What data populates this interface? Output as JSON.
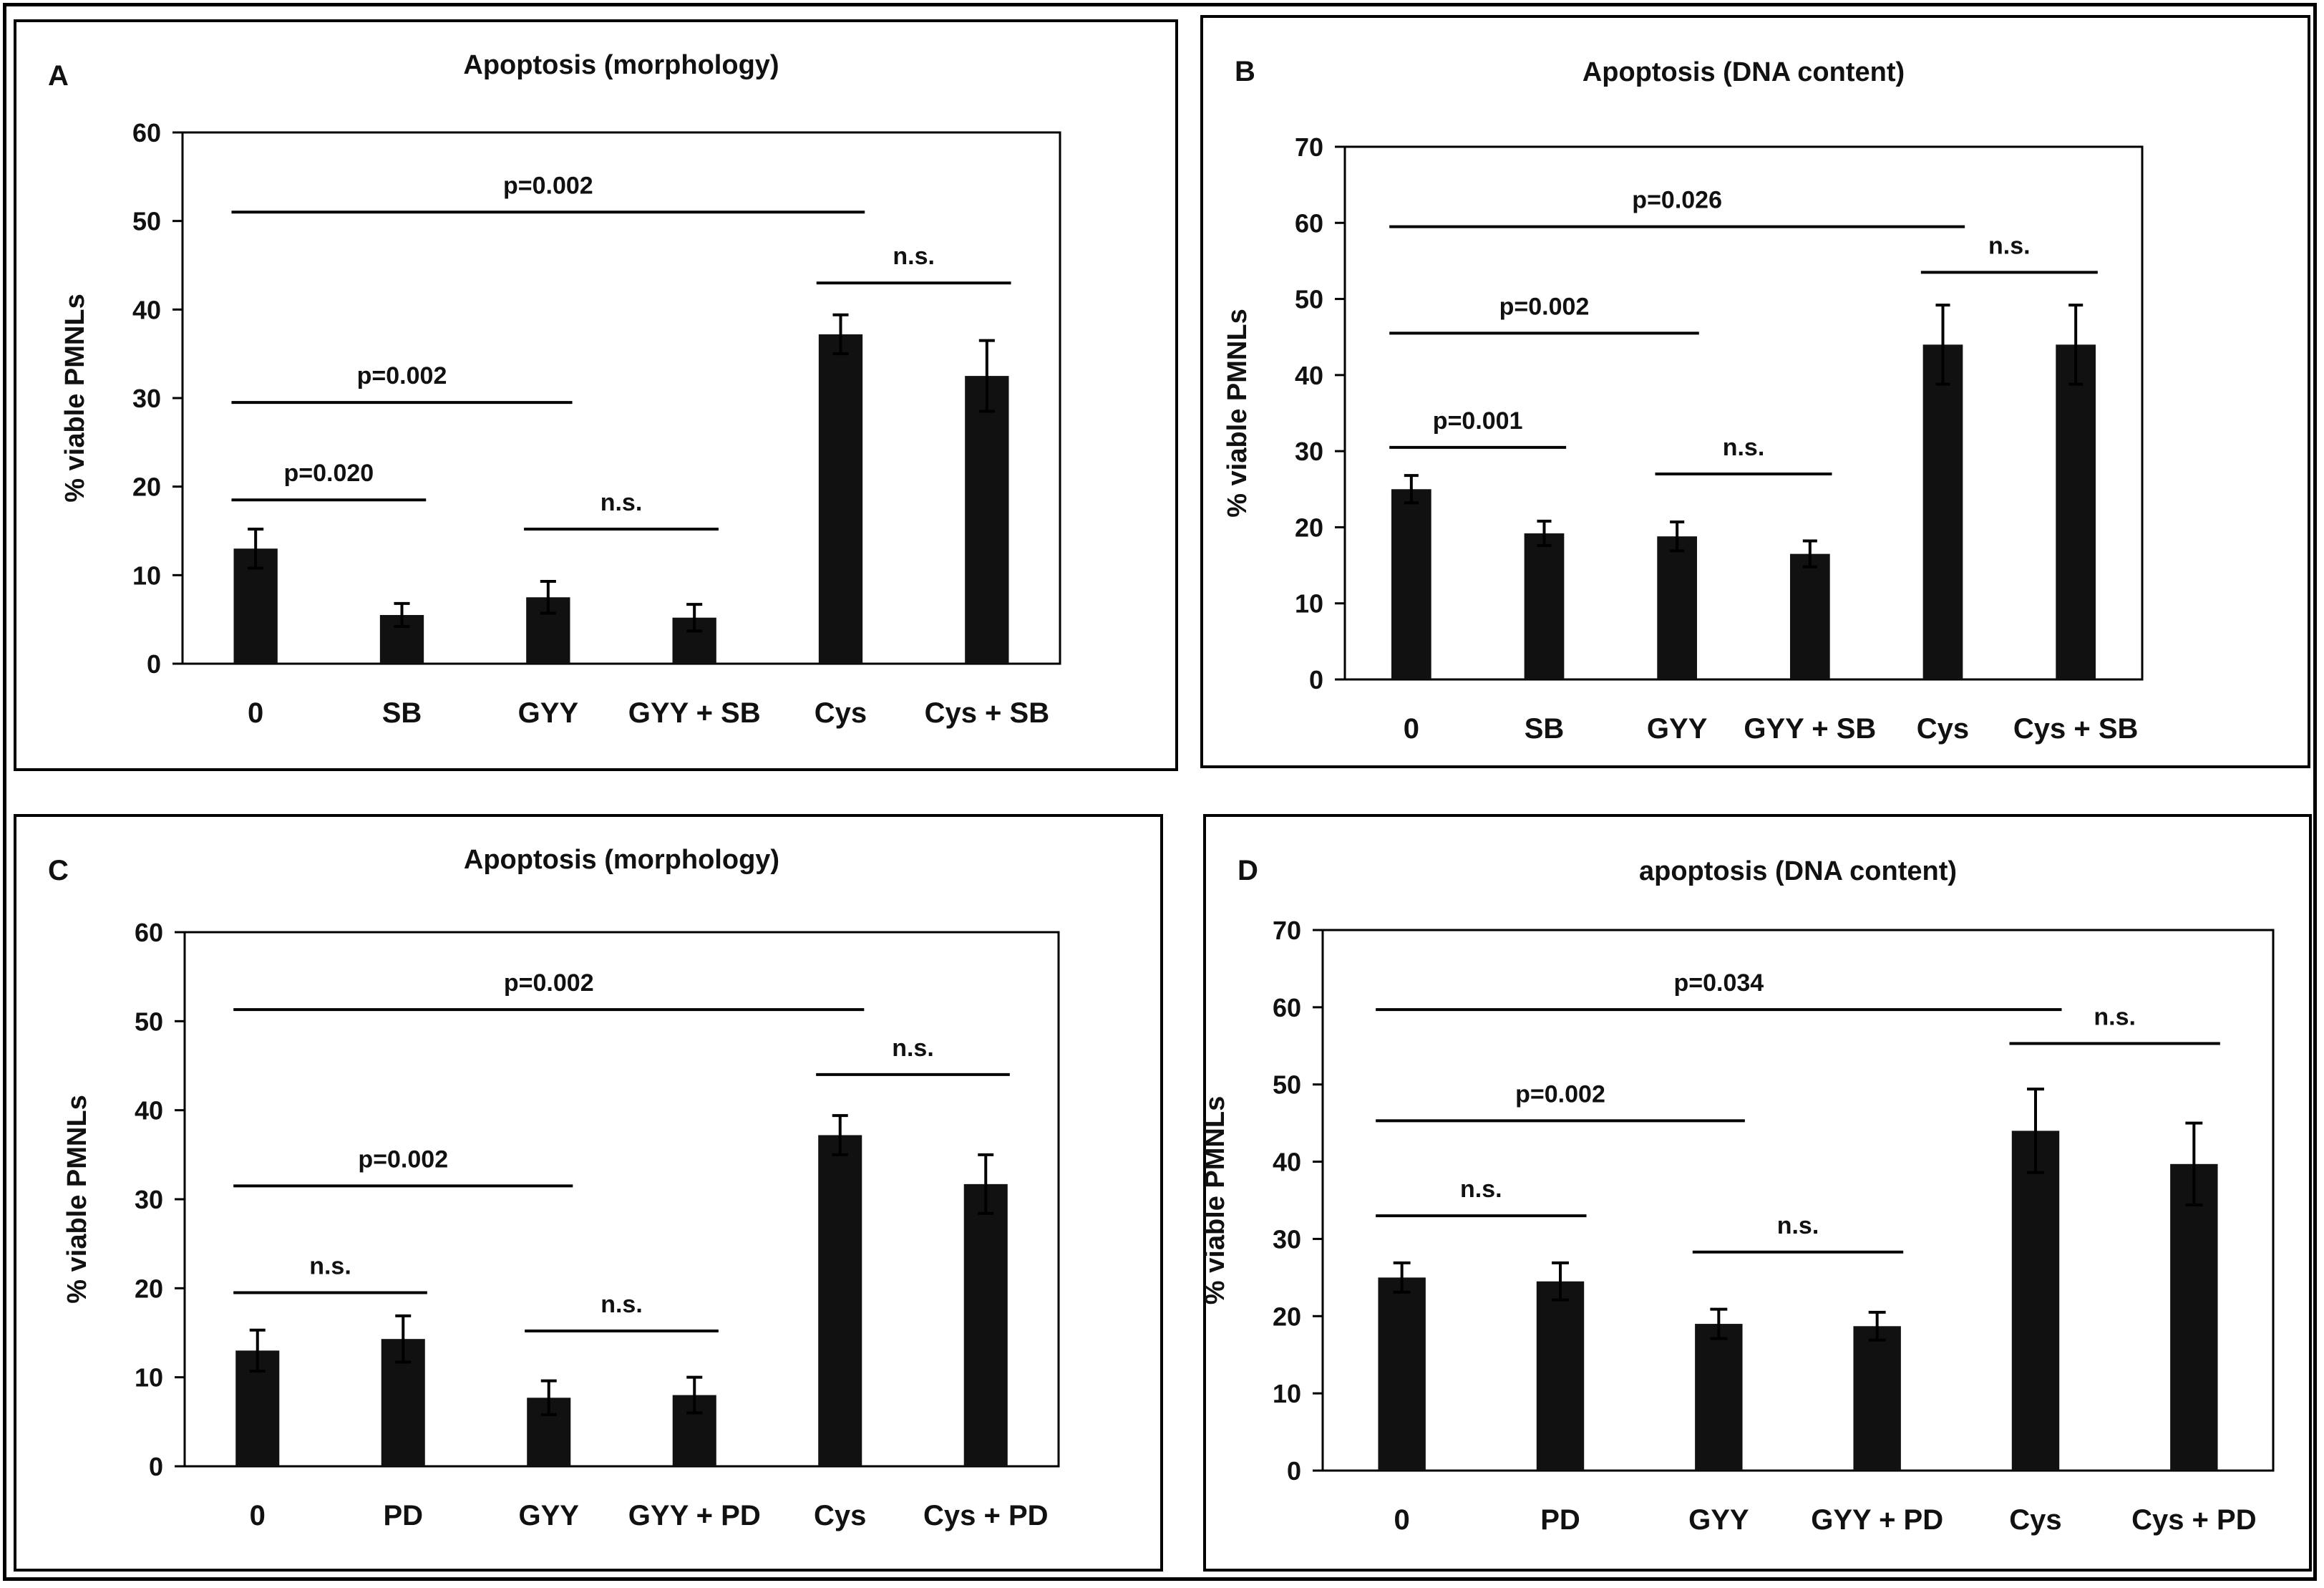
{
  "chart_data": [
    {
      "type": "bar",
      "panel_label": "A",
      "title": "Apoptosis (morphology)",
      "ylabel": "% viable PMNLs",
      "xlabel": "",
      "ylim": [
        0,
        60
      ],
      "yticks": [
        0,
        10,
        20,
        30,
        40,
        50,
        60
      ],
      "categories": [
        "0",
        "SB",
        "GYY",
        "GYY + SB",
        "Cys",
        "Cys + SB"
      ],
      "values": [
        13,
        5.5,
        7.5,
        5.2,
        37.2,
        32.5
      ],
      "errors": [
        2.2,
        1.3,
        1.8,
        1.5,
        2.2,
        4.0
      ],
      "color": "#111111",
      "annotations": [
        {
          "label": "p=0.002",
          "from": 0,
          "to": 4,
          "y": 51
        },
        {
          "label": "n.s.",
          "from": 4,
          "to": 5,
          "y": 43
        },
        {
          "label": "p=0.002",
          "from": 0,
          "to": 2,
          "y": 29.5
        },
        {
          "label": "n.s.",
          "from": 2,
          "to": 3,
          "y": 15.2
        },
        {
          "label": "p=0.020",
          "from": 0,
          "to": 1,
          "y": 18.5
        }
      ]
    },
    {
      "type": "bar",
      "panel_label": "B",
      "title": "Apoptosis (DNA content)",
      "ylabel": "% viable PMNLs",
      "xlabel": "",
      "ylim": [
        0,
        70
      ],
      "yticks": [
        0,
        10,
        20,
        30,
        40,
        50,
        60,
        70
      ],
      "categories": [
        "0",
        "SB",
        "GYY",
        "GYY + SB",
        "Cys",
        "Cys + SB"
      ],
      "values": [
        25,
        19.2,
        18.8,
        16.5,
        44,
        44
      ],
      "errors": [
        1.8,
        1.6,
        1.9,
        1.7,
        5.2,
        5.2
      ],
      "color": "#111111",
      "annotations": [
        {
          "label": "p=0.026",
          "from": 0,
          "to": 4,
          "y": 59.5
        },
        {
          "label": "n.s.",
          "from": 4,
          "to": 5,
          "y": 53.5
        },
        {
          "label": "p=0.002",
          "from": 0,
          "to": 2,
          "y": 45.5
        },
        {
          "label": "p=0.001",
          "from": 0,
          "to": 1,
          "y": 30.5
        },
        {
          "label": "n.s.",
          "from": 2,
          "to": 3,
          "y": 27
        }
      ]
    },
    {
      "type": "bar",
      "panel_label": "C",
      "title": "Apoptosis (morphology)",
      "ylabel": "% viable PMNLs",
      "xlabel": "",
      "ylim": [
        0,
        60
      ],
      "yticks": [
        0,
        10,
        20,
        30,
        40,
        50,
        60
      ],
      "categories": [
        "0",
        "PD",
        "GYY",
        "GYY + PD",
        "Cys",
        "Cys + PD"
      ],
      "values": [
        13,
        14.3,
        7.7,
        8,
        37.2,
        31.7
      ],
      "errors": [
        2.3,
        2.6,
        1.9,
        2.0,
        2.2,
        3.3
      ],
      "color": "#111111",
      "annotations": [
        {
          "label": "p=0.002",
          "from": 0,
          "to": 4,
          "y": 51.3
        },
        {
          "label": "n.s.",
          "from": 4,
          "to": 5,
          "y": 44
        },
        {
          "label": "p=0.002",
          "from": 0,
          "to": 2,
          "y": 31.5
        },
        {
          "label": "n.s.",
          "from": 0,
          "to": 1,
          "y": 19.5
        },
        {
          "label": "n.s.",
          "from": 2,
          "to": 3,
          "y": 15.2
        }
      ]
    },
    {
      "type": "bar",
      "panel_label": "D",
      "title": "apoptosis (DNA content)",
      "ylabel": "% viable PMNLs",
      "xlabel": "",
      "ylim": [
        0,
        70
      ],
      "yticks": [
        0,
        10,
        20,
        30,
        40,
        50,
        60,
        70
      ],
      "categories": [
        "0",
        "PD",
        "GYY",
        "GYY + PD",
        "Cys",
        "Cys + PD"
      ],
      "values": [
        25,
        24.5,
        19,
        18.7,
        44,
        39.7
      ],
      "errors": [
        1.9,
        2.4,
        1.9,
        1.8,
        5.4,
        5.3
      ],
      "color": "#111111",
      "annotations": [
        {
          "label": "p=0.034",
          "from": 0,
          "to": 4,
          "y": 59.7
        },
        {
          "label": "n.s.",
          "from": 4,
          "to": 5,
          "y": 55.3
        },
        {
          "label": "p=0.002",
          "from": 0,
          "to": 2,
          "y": 45.3
        },
        {
          "label": "n.s.",
          "from": 0,
          "to": 1,
          "y": 33
        },
        {
          "label": "n.s.",
          "from": 2,
          "to": 3,
          "y": 28.3
        }
      ]
    }
  ]
}
